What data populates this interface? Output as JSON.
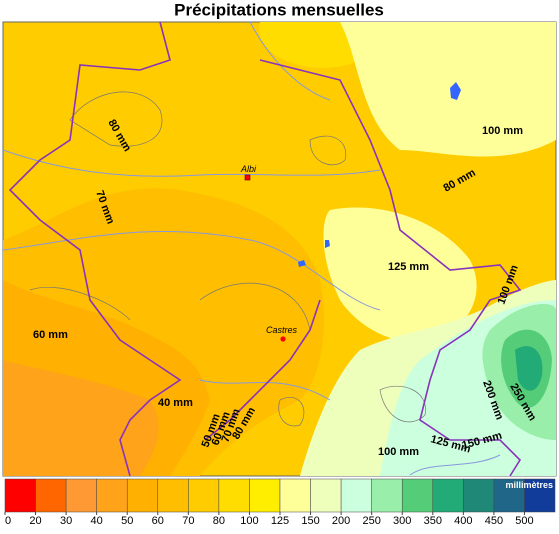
{
  "title": "Précipitations mensuelles",
  "map": {
    "contour_labels": [
      "80 mm",
      "70 mm",
      "60 mm",
      "40 mm",
      "50 mm",
      "60 mm",
      "70 mm",
      "80 mm",
      "100 mm",
      "80 mm",
      "125 mm",
      "100 mm",
      "200 mm",
      "250 mm",
      "150 mm",
      "125 mm",
      "100 mm"
    ],
    "cities": [
      "Albi",
      "Castres"
    ]
  },
  "legend": {
    "unit": "millimètres",
    "ticks": [
      0,
      20,
      30,
      40,
      50,
      60,
      70,
      80,
      100,
      125,
      150,
      200,
      250,
      300,
      350,
      400,
      450,
      500
    ],
    "colors": [
      "#ff0000",
      "#ff6600",
      "#ff9933",
      "#ffa31a",
      "#ffb000",
      "#ffbe00",
      "#ffcc00",
      "#ffdd00",
      "#ffee00",
      "#ffff99",
      "#eeffbb",
      "#ccffdd",
      "#99eeaa",
      "#55cc77",
      "#22aa77",
      "#1f8877",
      "#1f6688",
      "#113c99"
    ]
  }
}
